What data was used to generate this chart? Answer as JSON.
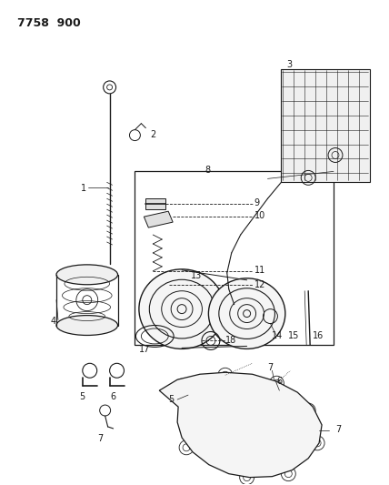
{
  "title": "7758  900",
  "bg_color": "#ffffff",
  "fig_width": 4.28,
  "fig_height": 5.33,
  "dpi": 100,
  "line_color": "#1a1a1a",
  "text_color": "#1a1a1a"
}
